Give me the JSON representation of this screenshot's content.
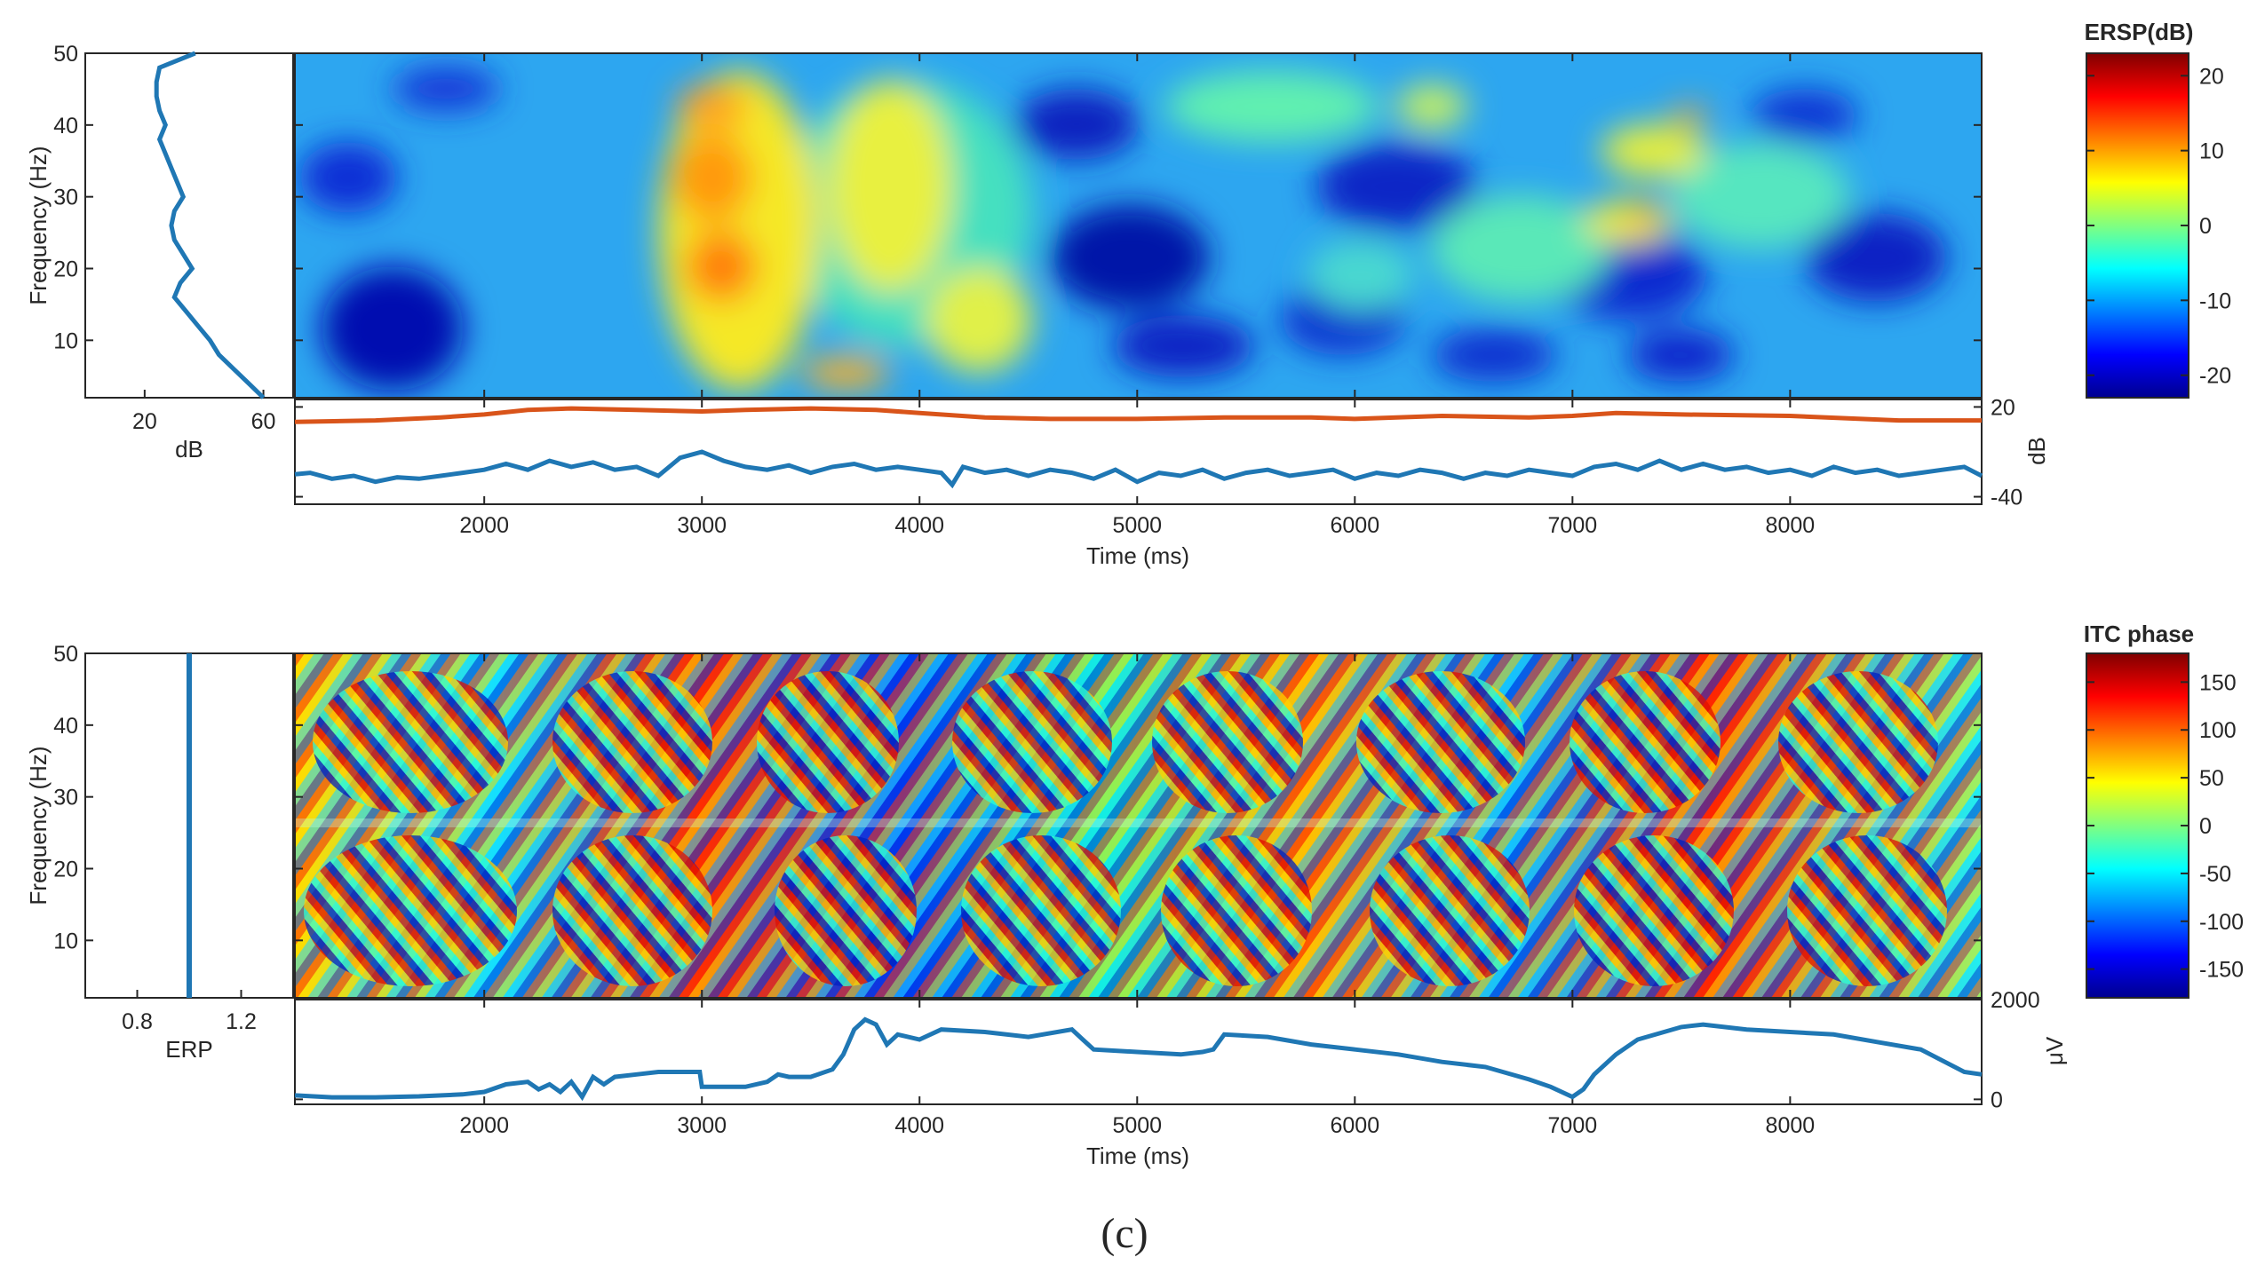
{
  "figure": {
    "caption": "(c)"
  },
  "colors": {
    "axis": "#262626",
    "blue_line": "#1f77b4",
    "orange_line": "#d9541a"
  },
  "chart_data": [
    {
      "id": "ersp",
      "type": "heatmap",
      "title": "ERSP(dB)",
      "xlabel": "Time (ms)",
      "ylabel": "Frequency (Hz)",
      "xlim": [
        1130,
        8880
      ],
      "ylim": [
        2,
        50
      ],
      "xticks": [
        2000,
        3000,
        4000,
        5000,
        6000,
        7000,
        8000
      ],
      "xtick_labels": [
        "2000",
        "3000",
        "4000",
        "5000",
        "6000",
        "7000",
        "8000"
      ],
      "yticks": [
        10,
        20,
        30,
        40,
        50
      ],
      "ytick_labels": [
        "10",
        "20",
        "30",
        "40",
        "50"
      ],
      "colormap": "jet",
      "color_range": [
        -23,
        23
      ],
      "colorbar_ticks": [
        -20,
        -10,
        0,
        10,
        20
      ],
      "colorbar_labels": [
        "-20",
        "-10",
        "0",
        "10",
        "20"
      ],
      "side_panel": {
        "xlabel": "dB",
        "xlim": [
          0,
          70
        ],
        "xticks": [
          20,
          60
        ],
        "xtick_labels": [
          "20",
          "60"
        ],
        "profile_freq": [
          2,
          4,
          6,
          8,
          10,
          12,
          14,
          16,
          18,
          20,
          22,
          24,
          26,
          28,
          30,
          32,
          34,
          36,
          38,
          40,
          42,
          44,
          46,
          48,
          50
        ],
        "profile_value": [
          60,
          55,
          50,
          45,
          42,
          38,
          34,
          30,
          32,
          36,
          33,
          30,
          29,
          30,
          33,
          31,
          29,
          27,
          25,
          27,
          25,
          24,
          24,
          25,
          37
        ]
      },
      "bottom_panel": {
        "ylabel": "dB",
        "yticks": [
          20,
          -40
        ],
        "ytick_labels": [
          "20",
          "-40"
        ],
        "ylim": [
          -45,
          25
        ],
        "series": [
          {
            "name": "upper",
            "color": "#d9541a",
            "x": [
              1130,
              1500,
              1800,
              2000,
              2200,
              2400,
              2700,
              3000,
              3200,
              3500,
              3800,
              4000,
              4300,
              4600,
              5000,
              5400,
              5800,
              6000,
              6400,
              6800,
              7000,
              7200,
              7500,
              8000,
              8500,
              8880
            ],
            "y": [
              10,
              11,
              13,
              15,
              18,
              19,
              18,
              17,
              18,
              19,
              18,
              16,
              13,
              12,
              12,
              13,
              13,
              12,
              14,
              13,
              14,
              16,
              15,
              14,
              11,
              11
            ]
          },
          {
            "name": "lower",
            "color": "#1f77b4",
            "x": [
              1130,
              1200,
              1300,
              1400,
              1500,
              1600,
              1700,
              1800,
              1900,
              2000,
              2100,
              2200,
              2300,
              2400,
              2500,
              2600,
              2700,
              2800,
              2900,
              3000,
              3100,
              3200,
              3300,
              3400,
              3500,
              3600,
              3700,
              3800,
              3900,
              4000,
              4100,
              4150,
              4200,
              4300,
              4400,
              4500,
              4600,
              4700,
              4800,
              4900,
              5000,
              5100,
              5200,
              5300,
              5400,
              5500,
              5600,
              5700,
              5800,
              5900,
              6000,
              6100,
              6200,
              6300,
              6400,
              6500,
              6600,
              6700,
              6800,
              6900,
              7000,
              7100,
              7200,
              7300,
              7400,
              7500,
              7600,
              7700,
              7800,
              7900,
              8000,
              8100,
              8200,
              8300,
              8400,
              8500,
              8600,
              8700,
              8800,
              8880
            ],
            "y": [
              -25,
              -24,
              -28,
              -26,
              -30,
              -27,
              -28,
              -26,
              -24,
              -22,
              -18,
              -22,
              -16,
              -20,
              -17,
              -22,
              -20,
              -26,
              -14,
              -10,
              -16,
              -20,
              -22,
              -19,
              -24,
              -20,
              -18,
              -22,
              -20,
              -22,
              -24,
              -32,
              -20,
              -24,
              -22,
              -26,
              -22,
              -24,
              -28,
              -22,
              -30,
              -24,
              -26,
              -22,
              -28,
              -24,
              -22,
              -26,
              -24,
              -22,
              -28,
              -24,
              -26,
              -22,
              -24,
              -28,
              -24,
              -26,
              -22,
              -24,
              -26,
              -20,
              -18,
              -22,
              -16,
              -22,
              -18,
              -22,
              -20,
              -24,
              -22,
              -26,
              -20,
              -24,
              -22,
              -26,
              -24,
              -22,
              -20,
              -26
            ]
          }
        ]
      }
    },
    {
      "id": "itc",
      "type": "heatmap",
      "title": "ITC phase",
      "xlabel": "Time (ms)",
      "ylabel": "Frequency (Hz)",
      "xlim": [
        1130,
        8880
      ],
      "ylim": [
        2,
        50
      ],
      "xticks": [
        2000,
        3000,
        4000,
        5000,
        6000,
        7000,
        8000
      ],
      "xtick_labels": [
        "2000",
        "3000",
        "4000",
        "5000",
        "6000",
        "7000",
        "8000"
      ],
      "yticks": [
        10,
        20,
        30,
        40,
        50
      ],
      "ytick_labels": [
        "10",
        "20",
        "30",
        "40",
        "50"
      ],
      "colormap": "jet",
      "color_range": [
        -180,
        180
      ],
      "colorbar_ticks": [
        -150,
        -100,
        -50,
        0,
        50,
        100,
        150
      ],
      "colorbar_labels": [
        "-150",
        "-100",
        "-50",
        "0",
        "50",
        "100",
        "150"
      ],
      "side_panel": {
        "xlabel": "ERP",
        "xlim": [
          0.6,
          1.4
        ],
        "xticks": [
          0.8,
          1.2
        ],
        "xtick_labels": [
          "0.8",
          "1.2"
        ],
        "profile_freq": [
          2,
          50
        ],
        "profile_value": [
          1.0,
          1.0
        ]
      },
      "bottom_panel": {
        "ylabel": "μV",
        "yticks": [
          2000,
          0
        ],
        "ytick_labels": [
          "2000",
          "0"
        ],
        "ylim": [
          -100,
          2000
        ],
        "series": [
          {
            "name": "erp",
            "color": "#1f77b4",
            "x": [
              1130,
              1300,
              1500,
              1700,
              1900,
              2000,
              2100,
              2200,
              2250,
              2300,
              2350,
              2400,
              2450,
              2500,
              2550,
              2600,
              2700,
              2800,
              2900,
              2990,
              3000,
              3100,
              3200,
              3300,
              3350,
              3400,
              3500,
              3600,
              3650,
              3700,
              3750,
              3800,
              3850,
              3900,
              4000,
              4100,
              4300,
              4500,
              4700,
              4750,
              4800,
              5000,
              5200,
              5300,
              5350,
              5400,
              5600,
              5800,
              6000,
              6200,
              6400,
              6600,
              6800,
              6900,
              7000,
              7050,
              7100,
              7200,
              7300,
              7500,
              7600,
              7800,
              8000,
              8200,
              8400,
              8600,
              8800,
              8880
            ],
            "y": [
              80,
              40,
              40,
              60,
              100,
              150,
              300,
              350,
              200,
              300,
              150,
              350,
              50,
              450,
              300,
              450,
              500,
              550,
              550,
              550,
              250,
              250,
              250,
              350,
              500,
              450,
              450,
              600,
              900,
              1400,
              1600,
              1500,
              1100,
              1300,
              1200,
              1400,
              1350,
              1250,
              1400,
              1200,
              1000,
              950,
              900,
              950,
              1000,
              1300,
              1250,
              1100,
              1000,
              900,
              750,
              650,
              400,
              250,
              50,
              200,
              500,
              900,
              1200,
              1450,
              1500,
              1400,
              1350,
              1300,
              1150,
              1000,
              550,
              500
            ]
          }
        ]
      }
    }
  ]
}
